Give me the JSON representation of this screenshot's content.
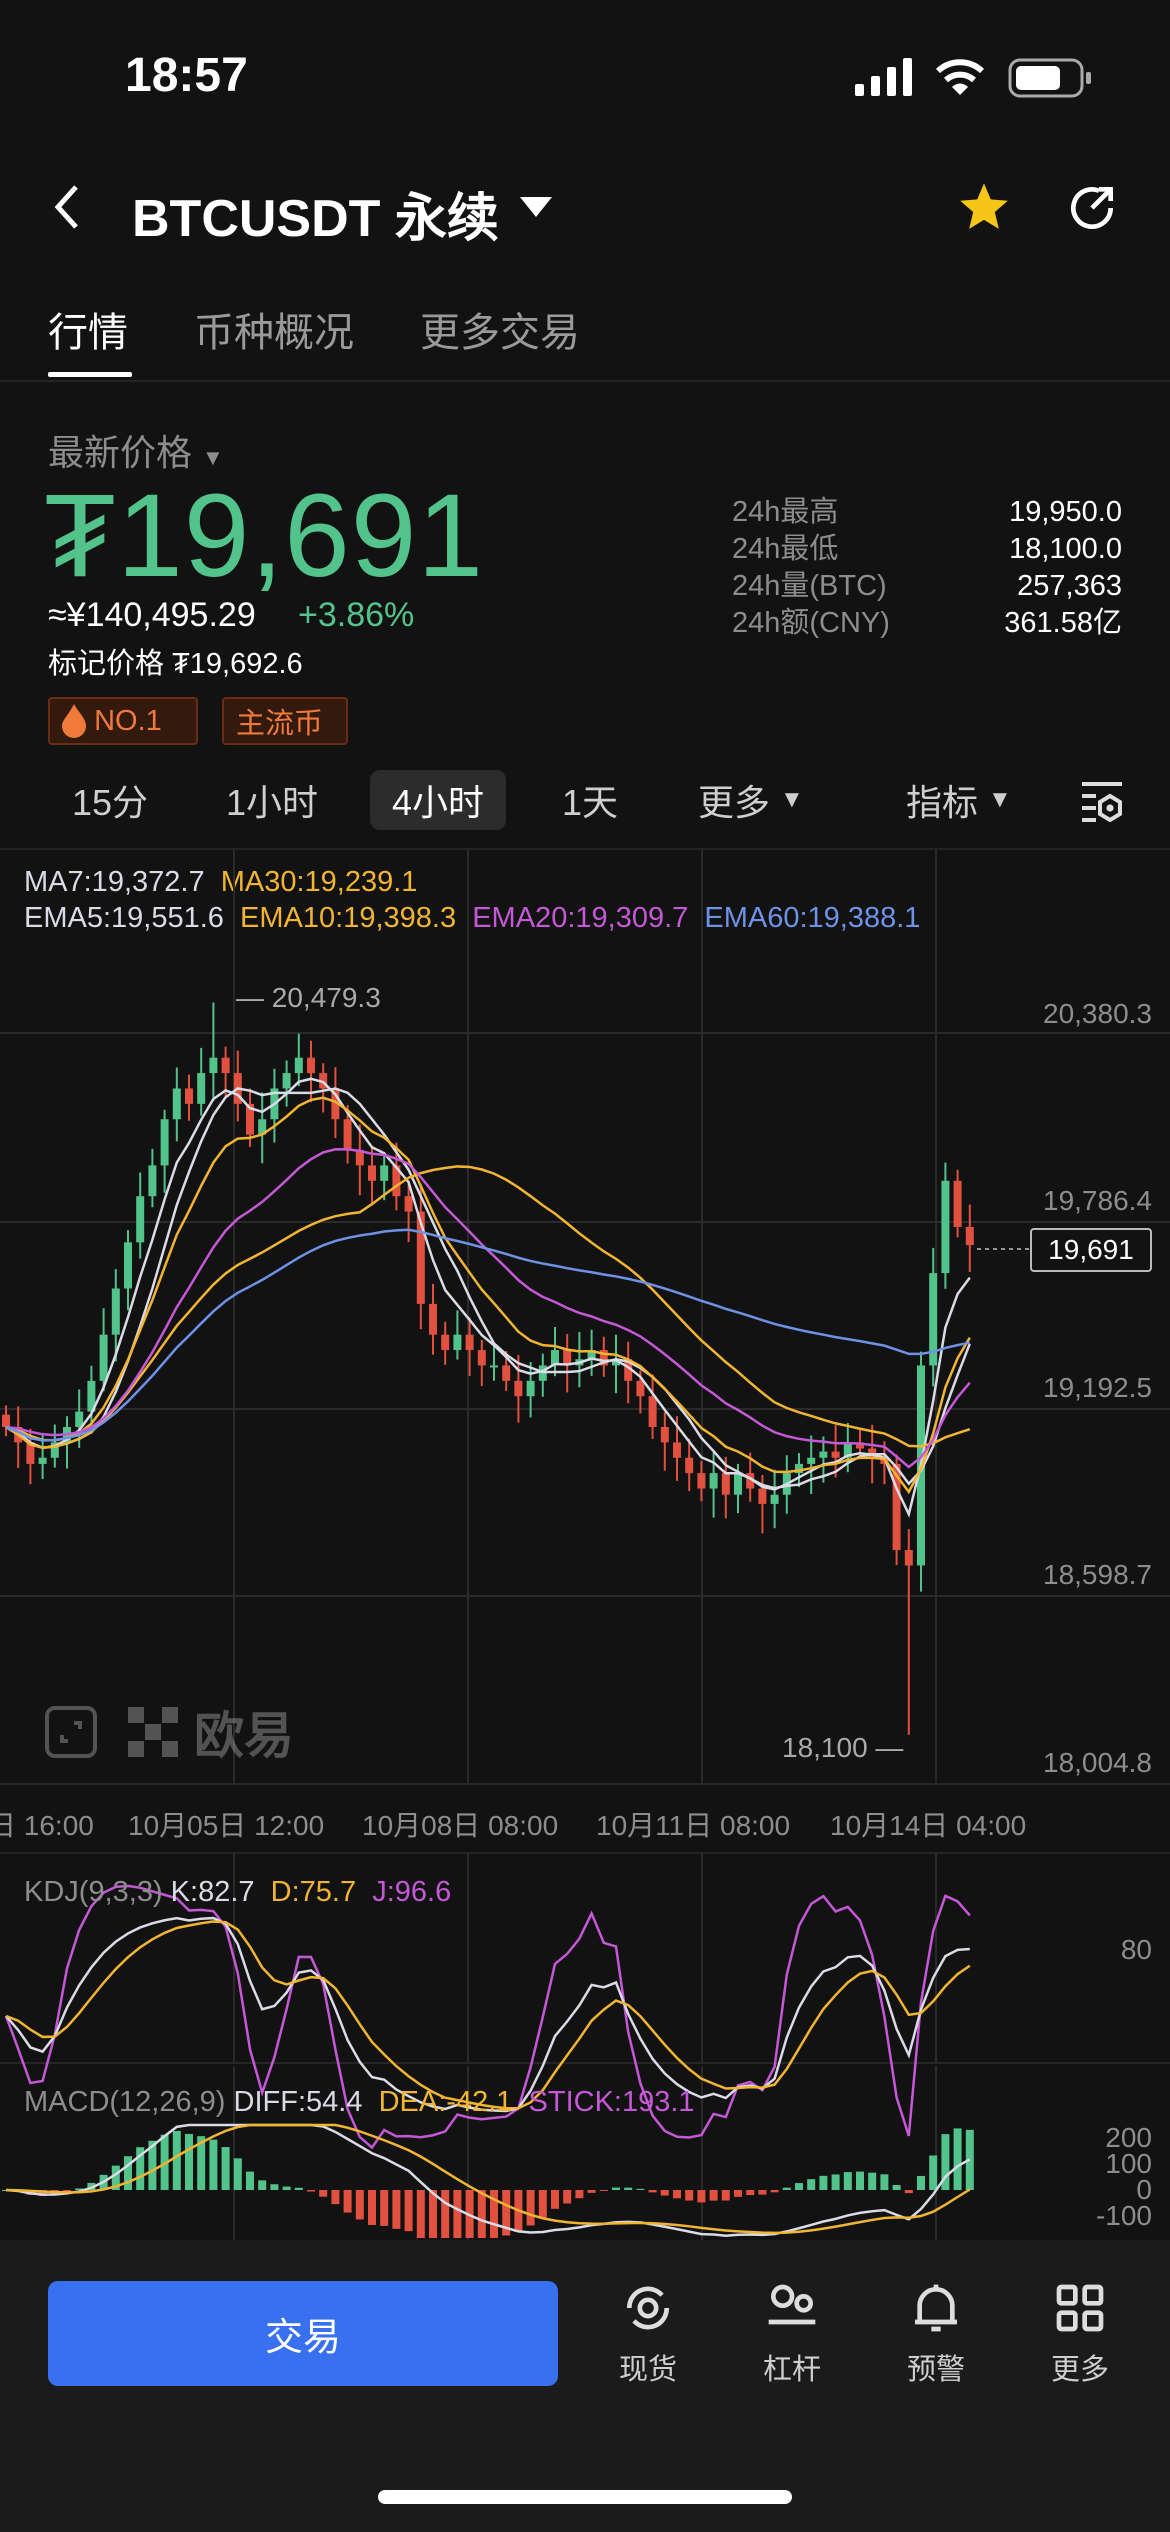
{
  "status_bar": {
    "time": "18:57",
    "icons": [
      "signal-icon",
      "wifi-icon",
      "battery-icon"
    ]
  },
  "header": {
    "back_icon": "chevron-left-icon",
    "title": "BTCUSDT 永续",
    "dropdown_icon": "caret-down-icon",
    "favorite_icon": "star-icon",
    "share_icon": "refresh-share-icon"
  },
  "tabs": [
    {
      "label": "行情",
      "active": true
    },
    {
      "label": "币种概况"
    },
    {
      "label": "更多交易"
    }
  ],
  "price": {
    "label": "最新价格",
    "last": "₮19,691",
    "cny": "≈¥140,495.29",
    "change": "+3.86%",
    "mark_label": "标记价格",
    "mark_value": "₮19,692.6"
  },
  "stats": [
    {
      "label": "24h最高",
      "value": "19,950.0"
    },
    {
      "label": "24h最低",
      "value": "18,100.0"
    },
    {
      "label": "24h量(BTC)",
      "value": "257,363"
    },
    {
      "label": "24h额(CNY)",
      "value": "361.58亿"
    }
  ],
  "badges": [
    {
      "label": "NO.1",
      "icon": "flame-icon"
    },
    {
      "label": "主流币"
    }
  ],
  "timeframes": [
    {
      "label": "15分"
    },
    {
      "label": "1小时"
    },
    {
      "label": "4小时",
      "active": true
    },
    {
      "label": "1天"
    },
    {
      "label": "更多"
    }
  ],
  "indicators_label": "指标",
  "chart_settings_icon": "chart-settings-icon",
  "legend": {
    "ma7": "MA7:19,372.7",
    "ma30": "MA30:19,239.1",
    "ema5": "EMA5:19,551.6",
    "ema10": "EMA10:19,398.3",
    "ema20": "EMA20:19,309.7",
    "ema60": "EMA60:19,388.1"
  },
  "colors": {
    "up": "#52c38b",
    "down": "#e2503f",
    "ema5": "#d9dbe6",
    "ema10": "#f2b531",
    "ema20": "#c558d6",
    "ema60": "#6e92e6",
    "accent": "#3870f0"
  },
  "chart_data": {
    "type": "candlestick",
    "price_axis": [
      "20,380.3",
      "19,786.4",
      "19,192.5",
      "18,598.7",
      "18,004.8"
    ],
    "ylim": [
      18004.8,
      20380.3
    ],
    "time_axis": [
      "日 16:00",
      "10月05日 12:00",
      "10月08日 08:00",
      "10月11日 08:00",
      "10月14日 04:00"
    ],
    "high_marker": "20,479.3",
    "low_marker": "18,100",
    "high_value": 20479.3,
    "low_value": 18100,
    "current_price": "19,691",
    "closes": [
      19100,
      19050,
      18980,
      19000,
      19050,
      19100,
      19150,
      19250,
      19400,
      19550,
      19700,
      19850,
      19950,
      20100,
      20200,
      20150,
      20250,
      20300,
      20250,
      20150,
      20050,
      20100,
      20200,
      20250,
      20300,
      20250,
      20200,
      20100,
      20000,
      19950,
      19900,
      19950,
      19850,
      19800,
      19500,
      19400,
      19350,
      19400,
      19350,
      19300,
      19300,
      19250,
      19200,
      19250,
      19300,
      19350,
      19300,
      19320,
      19350,
      19300,
      19320,
      19250,
      19200,
      19100,
      19050,
      19000,
      18950,
      18900,
      18950,
      18880,
      18950,
      18900,
      18850,
      18880,
      18950,
      18980,
      19000,
      19020,
      19000,
      19050,
      19030,
      19000,
      18980,
      18700,
      18650,
      19300,
      19600,
      19900,
      19750,
      19691
    ]
  },
  "kdj": {
    "label": "KDJ(9,3,3)",
    "k": "K:82.7",
    "d": "D:75.7",
    "j": "J:96.6",
    "axis": [
      "80"
    ]
  },
  "macd": {
    "label": "MACD(12,26,9)",
    "diff": "DIFF:54.4",
    "dea": "DEA:-42.1",
    "stick": "STICK:193.1",
    "axis": [
      "200",
      "100",
      "0",
      "-100"
    ]
  },
  "bottom_bar": {
    "trade": "交易",
    "items": [
      {
        "label": "现货",
        "icon": "spot-icon"
      },
      {
        "label": "杠杆",
        "icon": "margin-icon"
      },
      {
        "label": "预警",
        "icon": "bell-icon"
      },
      {
        "label": "更多",
        "icon": "grid-icon"
      }
    ]
  },
  "watermark": "欧易"
}
